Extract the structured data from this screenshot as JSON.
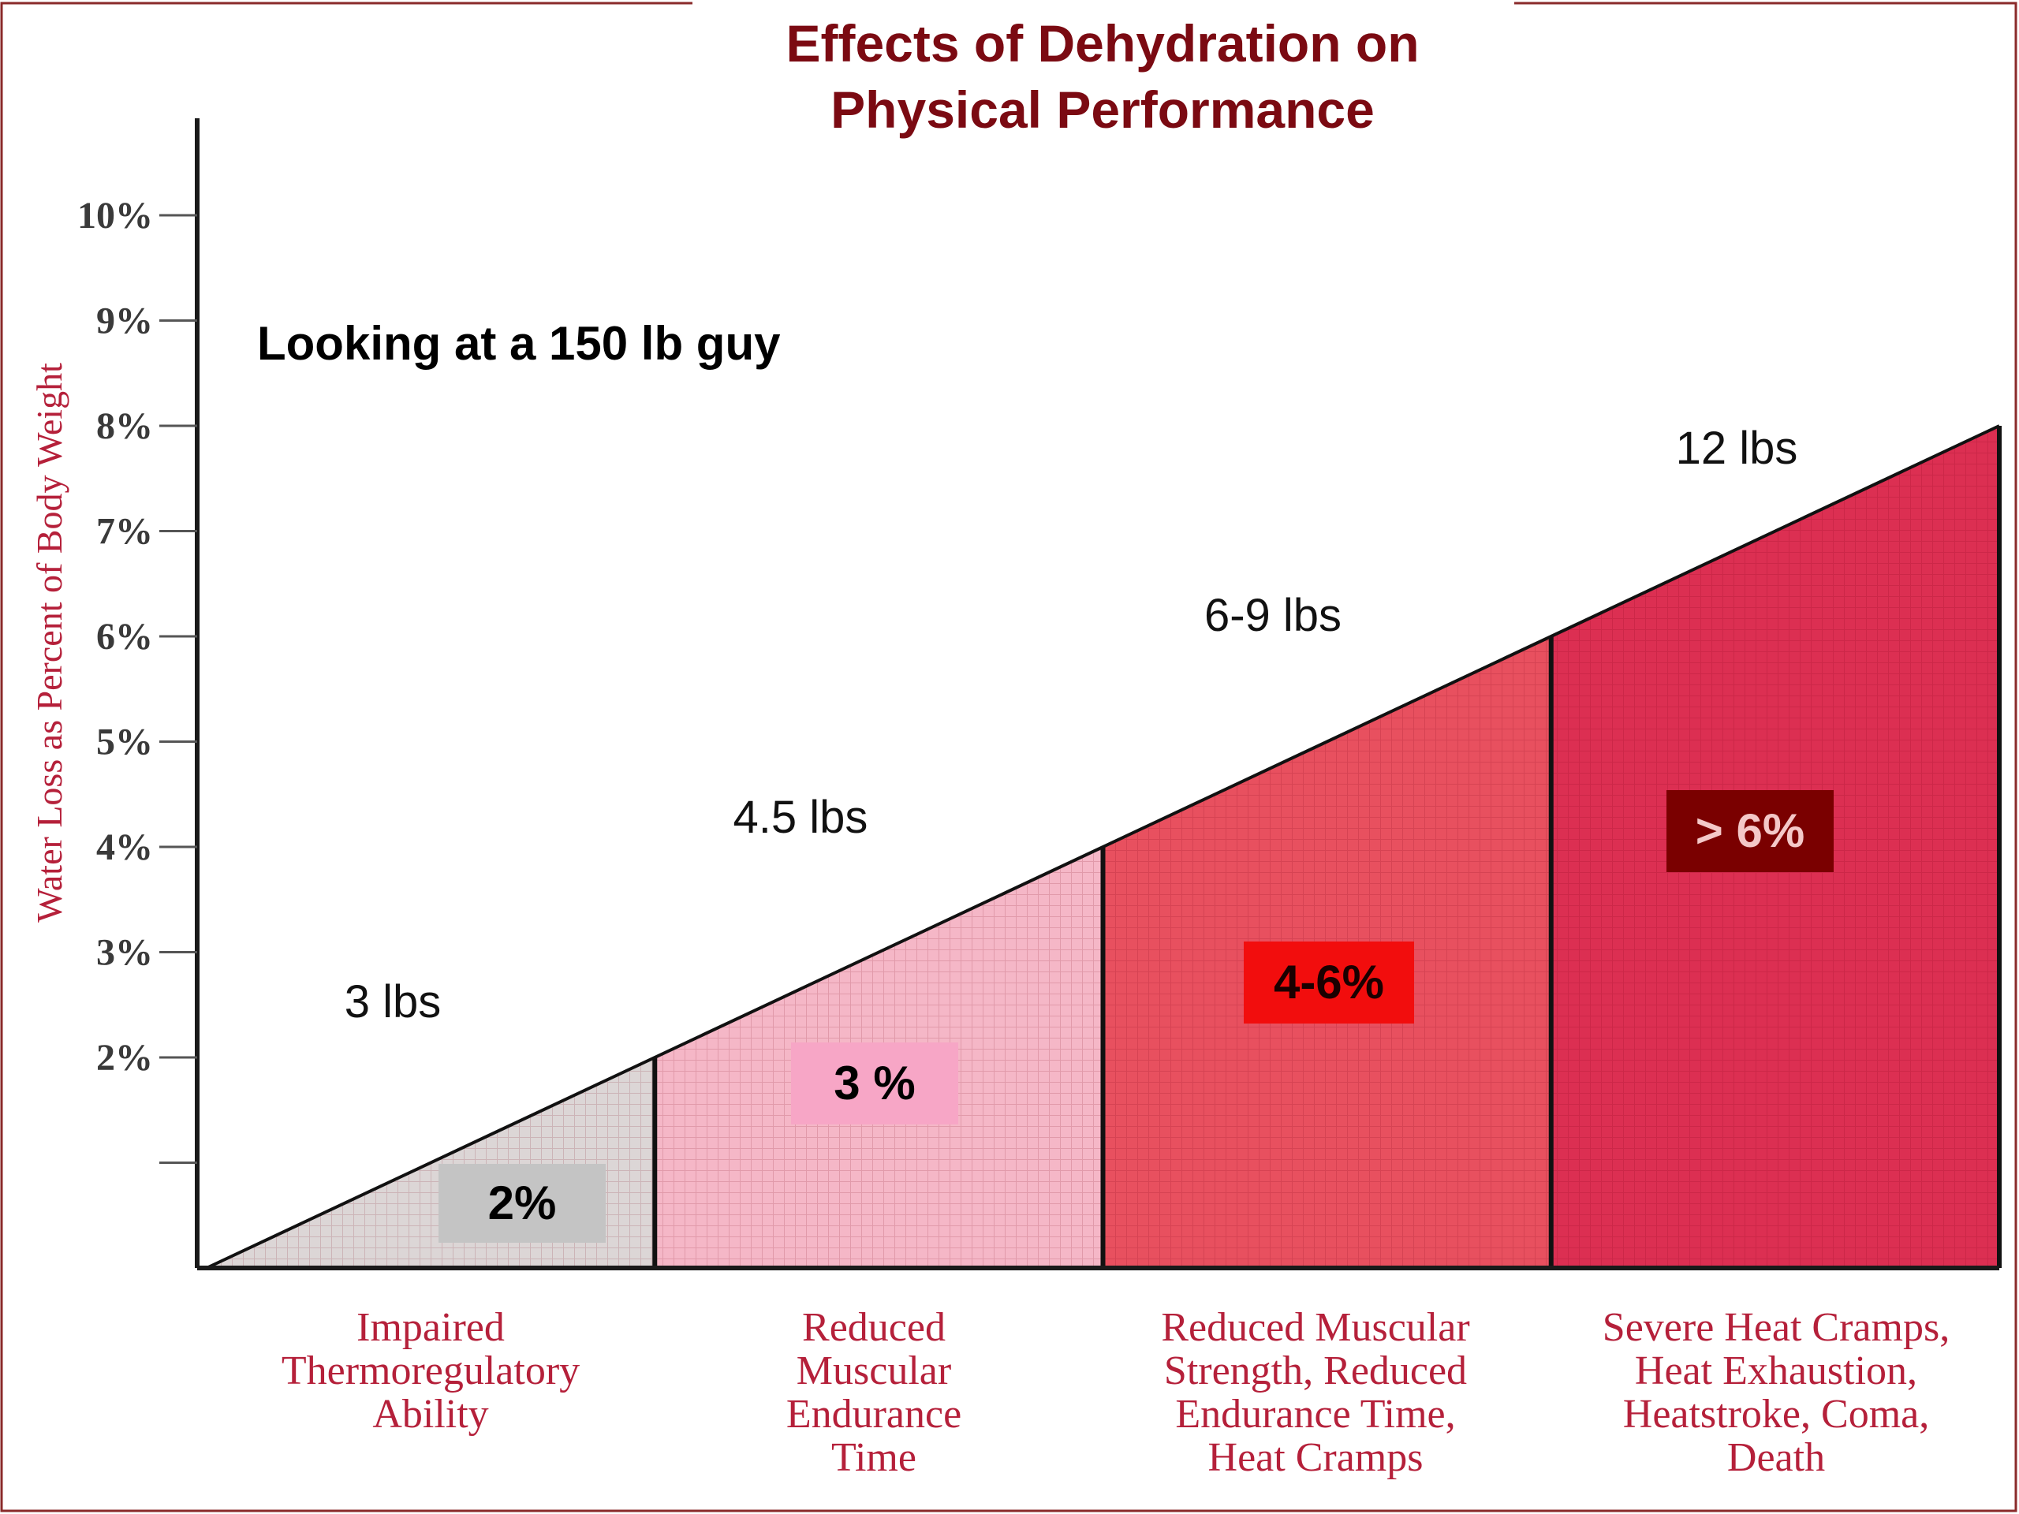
{
  "chart_data": {
    "type": "area",
    "title": "Effects of Dehydration on Physical Performance",
    "title_lines": [
      "Effects of Dehydration on",
      "Physical Performance"
    ],
    "subtitle": "Looking at a 150 lb guy",
    "ylabel": "Water Loss as Percent of Body Weight",
    "ylim": [
      0,
      10
    ],
    "yticks": [
      1,
      2,
      3,
      4,
      5,
      6,
      7,
      8,
      9,
      10
    ],
    "ytick_labels": [
      "",
      "2%",
      "3%",
      "4%",
      "5%",
      "6%",
      "7%",
      "8%",
      "9%",
      "10%"
    ],
    "x_max": 8,
    "series_line": {
      "x": [
        0,
        8
      ],
      "y": [
        0,
        8
      ]
    },
    "segments": [
      {
        "range": [
          0,
          2
        ],
        "badge": "2%",
        "weight": "3 lbs",
        "effect_lines": [
          "Impaired",
          "Thermoregulatory",
          "Ability"
        ],
        "fill": "#dcd6d6",
        "badge_bg": "#c4c4c4",
        "badge_color": "#000000"
      },
      {
        "range": [
          2,
          4
        ],
        "badge": "3 %",
        "weight": "4.5 lbs",
        "effect_lines": [
          "Reduced",
          "Muscular",
          "Endurance",
          "Time"
        ],
        "fill": "#f5b7c7",
        "badge_bg": "#f7a6c6",
        "badge_color": "#000000"
      },
      {
        "range": [
          4,
          6
        ],
        "badge": "4-6%",
        "weight": "6-9 lbs",
        "effect_lines": [
          "Reduced Muscular",
          "Strength, Reduced",
          "Endurance Time,",
          "Heat Cramps"
        ],
        "fill": "#e8505f",
        "badge_bg": "#f20d0d",
        "badge_color": "#1a0000"
      },
      {
        "range": [
          6,
          8
        ],
        "badge": "> 6%",
        "weight": "12 lbs",
        "effect_lines": [
          "Severe Heat Cramps,",
          "Heat Exhaustion,",
          "Heatstroke, Coma,",
          "Death"
        ],
        "fill": "#dc2f52",
        "badge_bg": "#7a0000",
        "badge_color": "#f4c8c8"
      }
    ],
    "title_color": "#7b0a12",
    "label_color": "#b5203a",
    "axis_color": "#1a1a1a"
  }
}
